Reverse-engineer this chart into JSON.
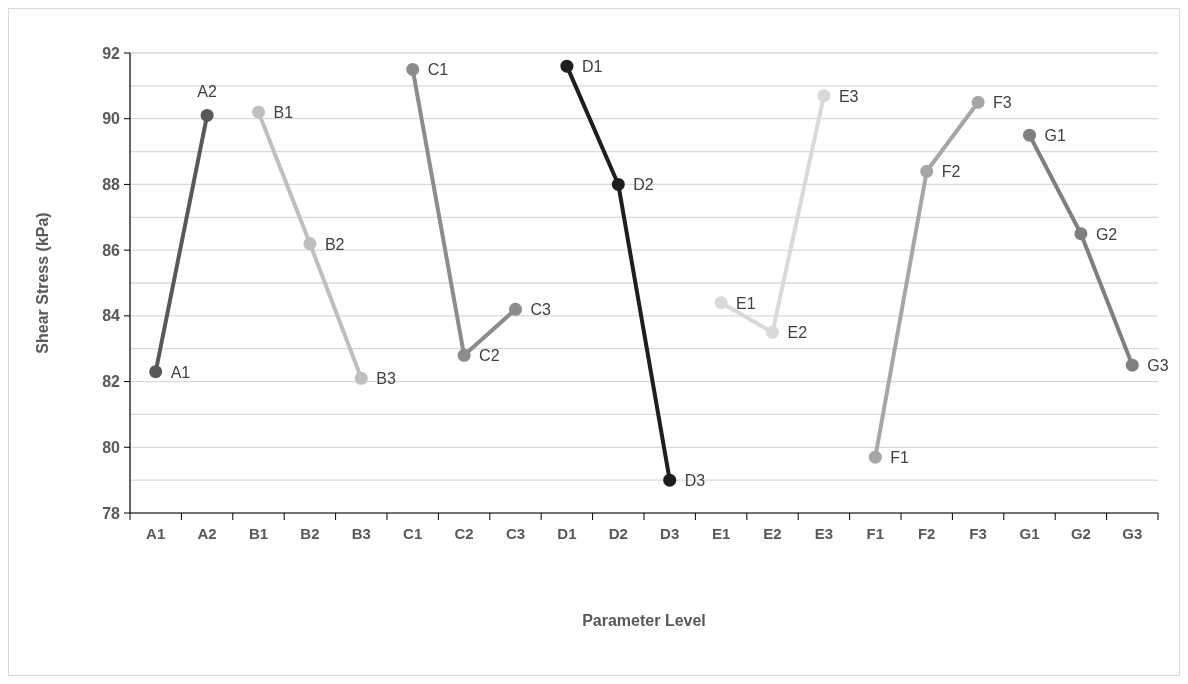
{
  "chart_data": {
    "type": "line",
    "xlabel": "Parameter Level",
    "ylabel": "Shear Stress (kPa)",
    "categories": [
      "A1",
      "A2",
      "B1",
      "B2",
      "B3",
      "C1",
      "C2",
      "C3",
      "D1",
      "D2",
      "D3",
      "E1",
      "E2",
      "E3",
      "F1",
      "F2",
      "F3",
      "G1",
      "G2",
      "G3"
    ],
    "series": [
      {
        "color": "#595959",
        "values": [
          82.3,
          90.1,
          null,
          null,
          null,
          null,
          null,
          null,
          null,
          null,
          null,
          null,
          null,
          null,
          null,
          null,
          null,
          null,
          null,
          null
        ]
      },
      {
        "color": "#bfbfbf",
        "values": [
          null,
          null,
          90.2,
          86.2,
          82.1,
          null,
          null,
          null,
          null,
          null,
          null,
          null,
          null,
          null,
          null,
          null,
          null,
          null,
          null,
          null
        ]
      },
      {
        "color": "#8c8c8c",
        "values": [
          null,
          null,
          null,
          null,
          null,
          91.5,
          82.8,
          84.2,
          null,
          null,
          null,
          null,
          null,
          null,
          null,
          null,
          null,
          null,
          null,
          null
        ]
      },
      {
        "color": "#1e1e1e",
        "values": [
          null,
          null,
          null,
          null,
          null,
          null,
          null,
          null,
          91.6,
          88.0,
          79.0,
          null,
          null,
          null,
          null,
          null,
          null,
          null,
          null,
          null
        ]
      },
      {
        "color": "#d9d9d9",
        "values": [
          null,
          null,
          null,
          null,
          null,
          null,
          null,
          null,
          null,
          null,
          null,
          84.4,
          83.5,
          90.7,
          null,
          null,
          null,
          null,
          null,
          null
        ]
      },
      {
        "color": "#a6a6a6",
        "values": [
          null,
          null,
          null,
          null,
          null,
          null,
          null,
          null,
          null,
          null,
          null,
          null,
          null,
          null,
          79.7,
          88.4,
          90.5,
          null,
          null,
          null
        ]
      },
      {
        "color": "#7f7f7f",
        "values": [
          null,
          null,
          null,
          null,
          null,
          null,
          null,
          null,
          null,
          null,
          null,
          null,
          null,
          null,
          null,
          null,
          null,
          89.5,
          86.5,
          82.5
        ]
      }
    ],
    "annotations": [
      {
        "text": "A1",
        "x": "A1",
        "y": 82.3
      },
      {
        "text": "A2",
        "x": "A2",
        "y": 90.1
      },
      {
        "text": "B1",
        "x": "B1",
        "y": 90.2
      },
      {
        "text": "B2",
        "x": "B2",
        "y": 86.2
      },
      {
        "text": "B3",
        "x": "B3",
        "y": 82.1
      },
      {
        "text": "C1",
        "x": "C1",
        "y": 91.5
      },
      {
        "text": "C2",
        "x": "C2",
        "y": 82.8
      },
      {
        "text": "C3",
        "x": "C3",
        "y": 84.2
      },
      {
        "text": "D1",
        "x": "D1",
        "y": 91.6
      },
      {
        "text": "D2",
        "x": "D2",
        "y": 88.0
      },
      {
        "text": "D3",
        "x": "D3",
        "y": 79.0
      },
      {
        "text": "E1",
        "x": "E1",
        "y": 84.4
      },
      {
        "text": "E2",
        "x": "E2",
        "y": 83.5
      },
      {
        "text": "E3",
        "x": "E3",
        "y": 90.7
      },
      {
        "text": "F1",
        "x": "F1",
        "y": 79.7
      },
      {
        "text": "F2",
        "x": "F2",
        "y": 88.4
      },
      {
        "text": "F3",
        "x": "F3",
        "y": 90.5
      },
      {
        "text": "G1",
        "x": "G1",
        "y": 89.5
      },
      {
        "text": "G2",
        "x": "G2",
        "y": 86.5
      },
      {
        "text": "G3",
        "x": "G3",
        "y": 82.5
      }
    ],
    "ylim": [
      78,
      92
    ],
    "yticks": [
      78,
      {
        "value": 79,
        "label": null
      },
      80,
      {
        "value": 81,
        "label": null
      },
      82,
      {
        "value": 83,
        "label": null
      },
      84,
      {
        "value": 85,
        "label": null
      },
      86,
      {
        "value": 87,
        "label": null
      },
      88,
      {
        "value": 89,
        "label": null
      },
      90,
      {
        "value": 91,
        "label": null
      },
      92
    ],
    "grid": true,
    "marker": "circle",
    "line_style": "solid"
  }
}
